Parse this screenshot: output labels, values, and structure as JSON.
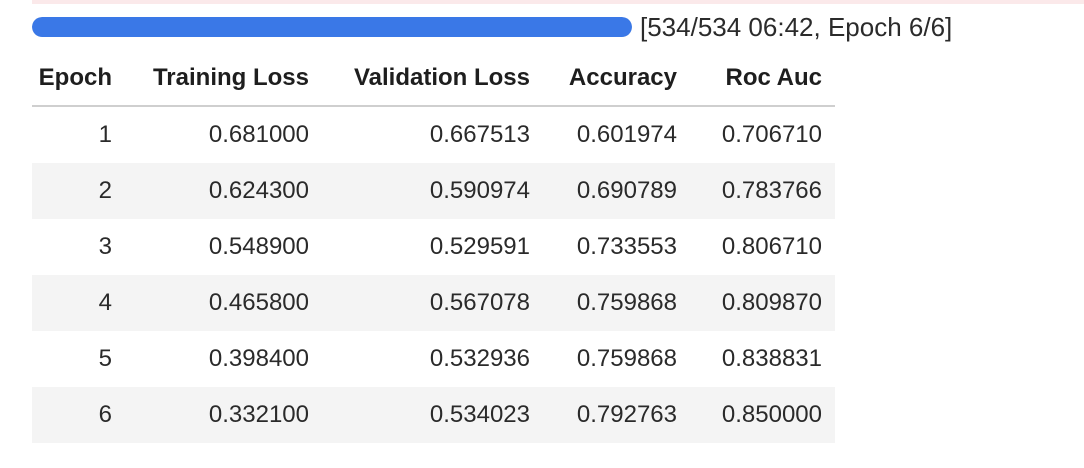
{
  "progress": {
    "fraction": 1.0,
    "status_text": "[534/534 06:42, Epoch 6/6]"
  },
  "table": {
    "headers": {
      "epoch": "Epoch",
      "training_loss": "Training Loss",
      "validation_loss": "Validation Loss",
      "accuracy": "Accuracy",
      "roc_auc": "Roc Auc"
    },
    "rows": [
      {
        "epoch": "1",
        "training_loss": "0.681000",
        "validation_loss": "0.667513",
        "accuracy": "0.601974",
        "roc_auc": "0.706710"
      },
      {
        "epoch": "2",
        "training_loss": "0.624300",
        "validation_loss": "0.590974",
        "accuracy": "0.690789",
        "roc_auc": "0.783766"
      },
      {
        "epoch": "3",
        "training_loss": "0.548900",
        "validation_loss": "0.529591",
        "accuracy": "0.733553",
        "roc_auc": "0.806710"
      },
      {
        "epoch": "4",
        "training_loss": "0.465800",
        "validation_loss": "0.567078",
        "accuracy": "0.759868",
        "roc_auc": "0.809870"
      },
      {
        "epoch": "5",
        "training_loss": "0.398400",
        "validation_loss": "0.532936",
        "accuracy": "0.759868",
        "roc_auc": "0.838831"
      },
      {
        "epoch": "6",
        "training_loss": "0.332100",
        "validation_loss": "0.534023",
        "accuracy": "0.792763",
        "roc_auc": "0.850000"
      }
    ]
  },
  "colors": {
    "progress_fill": "#3a78e7",
    "progress_track": "#e6e6e6",
    "row_stripe": "#f4f4f4"
  }
}
